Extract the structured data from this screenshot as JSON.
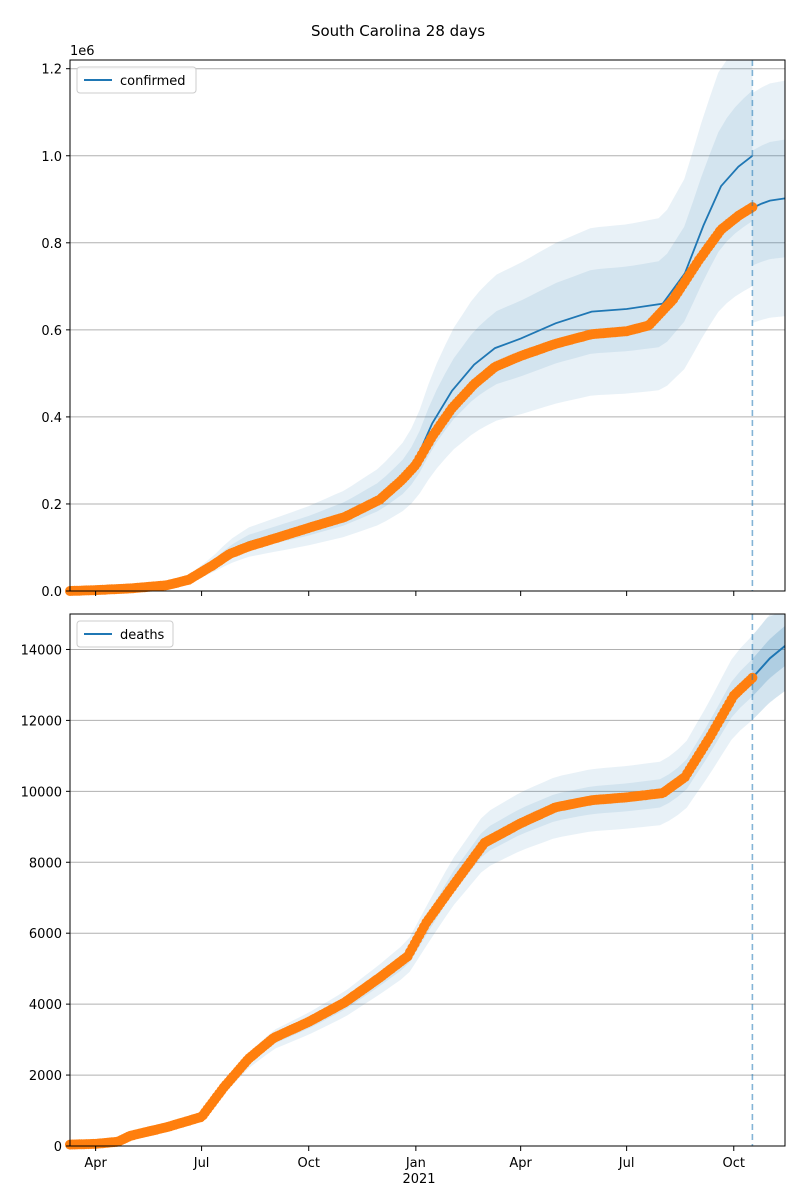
{
  "title": "South Carolina 28 days",
  "colors": {
    "model": "#1f77b4",
    "observed": "#ff7f0e",
    "grid": "#b0b0b0"
  },
  "chart_data": [
    {
      "type": "line",
      "legend": "confirmed",
      "legend_loc": "upper left",
      "grid": "horizontal",
      "offset_label": "1e6",
      "ylim": [
        0,
        1.22
      ],
      "yticks": [
        0,
        0.2,
        0.4,
        0.6,
        0.8,
        1.0,
        1.2
      ],
      "ytick_labels": [
        "0.0",
        "0.2",
        "0.4",
        "0.6",
        "0.8",
        "1.0",
        "1.2"
      ],
      "xlim": [
        "2020-03-10",
        "2021-11-14"
      ],
      "forecast_start": "2021-10-17",
      "model_line": [
        [
          "2020-03-10",
          0
        ],
        [
          "2020-04-01",
          0.003
        ],
        [
          "2020-05-01",
          0.007
        ],
        [
          "2020-06-01",
          0.014
        ],
        [
          "2020-06-20",
          0.028
        ],
        [
          "2020-07-10",
          0.06
        ],
        [
          "2020-07-25",
          0.09
        ],
        [
          "2020-08-10",
          0.112
        ],
        [
          "2020-09-01",
          0.128
        ],
        [
          "2020-10-01",
          0.15
        ],
        [
          "2020-11-01",
          0.178
        ],
        [
          "2020-12-01",
          0.218
        ],
        [
          "2020-12-20",
          0.26
        ],
        [
          "2021-01-01",
          0.3
        ],
        [
          "2021-01-15",
          0.385
        ],
        [
          "2021-02-01",
          0.46
        ],
        [
          "2021-02-20",
          0.52
        ],
        [
          "2021-03-10",
          0.558
        ],
        [
          "2021-04-01",
          0.58
        ],
        [
          "2021-05-01",
          0.615
        ],
        [
          "2021-06-01",
          0.642
        ],
        [
          "2021-07-01",
          0.648
        ],
        [
          "2021-08-01",
          0.66
        ],
        [
          "2021-08-20",
          0.73
        ],
        [
          "2021-09-05",
          0.84
        ],
        [
          "2021-09-20",
          0.93
        ],
        [
          "2021-10-05",
          0.975
        ],
        [
          "2021-10-17",
          1.0
        ]
      ],
      "forecast_line": [
        [
          "2021-10-17",
          0.88
        ],
        [
          "2021-10-25",
          0.89
        ],
        [
          "2021-11-01",
          0.897
        ],
        [
          "2021-11-14",
          0.902
        ]
      ],
      "band_relative_width": [
        0.15,
        0.3
      ],
      "observed": [
        [
          "2020-03-10",
          0
        ],
        [
          "2020-04-01",
          0.002
        ],
        [
          "2020-05-01",
          0.006
        ],
        [
          "2020-06-01",
          0.013
        ],
        [
          "2020-06-20",
          0.026
        ],
        [
          "2020-07-10",
          0.058
        ],
        [
          "2020-07-25",
          0.085
        ],
        [
          "2020-08-10",
          0.102
        ],
        [
          "2020-09-01",
          0.12
        ],
        [
          "2020-10-01",
          0.145
        ],
        [
          "2020-11-01",
          0.17
        ],
        [
          "2020-12-01",
          0.21
        ],
        [
          "2020-12-20",
          0.255
        ],
        [
          "2021-01-01",
          0.29
        ],
        [
          "2021-01-15",
          0.355
        ],
        [
          "2021-02-01",
          0.42
        ],
        [
          "2021-02-20",
          0.475
        ],
        [
          "2021-03-10",
          0.515
        ],
        [
          "2021-04-01",
          0.54
        ],
        [
          "2021-05-01",
          0.568
        ],
        [
          "2021-06-01",
          0.59
        ],
        [
          "2021-07-01",
          0.597
        ],
        [
          "2021-07-20",
          0.61
        ],
        [
          "2021-08-10",
          0.67
        ],
        [
          "2021-09-01",
          0.76
        ],
        [
          "2021-09-20",
          0.83
        ],
        [
          "2021-10-05",
          0.862
        ],
        [
          "2021-10-17",
          0.882
        ]
      ]
    },
    {
      "type": "line",
      "legend": "deaths",
      "legend_loc": "upper left",
      "grid": "horizontal",
      "ylim": [
        0,
        15000
      ],
      "yticks": [
        0,
        2000,
        4000,
        6000,
        8000,
        10000,
        12000,
        14000
      ],
      "ytick_labels": [
        "0",
        "2000",
        "4000",
        "6000",
        "8000",
        "10000",
        "12000",
        "14000"
      ],
      "xlim": [
        "2020-03-10",
        "2021-11-14"
      ],
      "xticks": [
        "2020-04-01",
        "2020-07-01",
        "2020-10-01",
        "2021-01-01",
        "2021-04-01",
        "2021-07-01",
        "2021-10-01"
      ],
      "xtick_labels": [
        "Apr",
        "Jul",
        "Oct",
        "Jan",
        "Apr",
        "Jul",
        "Oct"
      ],
      "year_label": "2021",
      "forecast_start": "2021-10-17",
      "model_line": [
        [
          "2020-03-10",
          40
        ],
        [
          "2020-04-01",
          60
        ],
        [
          "2020-05-01",
          300
        ],
        [
          "2020-06-01",
          550
        ],
        [
          "2020-07-01",
          850
        ],
        [
          "2020-07-20",
          1600
        ],
        [
          "2020-08-10",
          2400
        ],
        [
          "2020-09-01",
          3000
        ],
        [
          "2020-10-01",
          3450
        ],
        [
          "2020-11-01",
          4000
        ],
        [
          "2020-12-01",
          4700
        ],
        [
          "2020-12-25",
          5300
        ],
        [
          "2021-01-10",
          6200
        ],
        [
          "2021-02-01",
          7400
        ],
        [
          "2021-03-01",
          8600
        ],
        [
          "2021-04-01",
          9150
        ],
        [
          "2021-05-01",
          9550
        ],
        [
          "2021-06-01",
          9750
        ],
        [
          "2021-07-01",
          9830
        ],
        [
          "2021-08-01",
          9950
        ],
        [
          "2021-08-20",
          10400
        ],
        [
          "2021-09-10",
          11500
        ],
        [
          "2021-10-01",
          12700
        ],
        [
          "2021-10-17",
          13200
        ],
        [
          "2021-11-01",
          13750
        ],
        [
          "2021-11-14",
          14100
        ]
      ],
      "forecast_line": [
        [
          "2021-10-17",
          13200
        ],
        [
          "2021-11-01",
          13750
        ],
        [
          "2021-11-14",
          14100
        ]
      ],
      "band_relative_width": [
        0.04,
        0.09
      ],
      "observed": [
        [
          "2020-03-10",
          40
        ],
        [
          "2020-04-01",
          60
        ],
        [
          "2020-04-20",
          120
        ],
        [
          "2020-05-01",
          290
        ],
        [
          "2020-06-01",
          530
        ],
        [
          "2020-07-01",
          820
        ],
        [
          "2020-07-20",
          1650
        ],
        [
          "2020-08-10",
          2450
        ],
        [
          "2020-09-01",
          3050
        ],
        [
          "2020-10-01",
          3500
        ],
        [
          "2020-11-01",
          4050
        ],
        [
          "2020-12-01",
          4750
        ],
        [
          "2020-12-25",
          5350
        ],
        [
          "2021-01-10",
          6300
        ],
        [
          "2021-02-01",
          7300
        ],
        [
          "2021-03-01",
          8550
        ],
        [
          "2021-04-01",
          9100
        ],
        [
          "2021-05-01",
          9550
        ],
        [
          "2021-06-01",
          9750
        ],
        [
          "2021-07-01",
          9830
        ],
        [
          "2021-08-01",
          9950
        ],
        [
          "2021-08-20",
          10400
        ],
        [
          "2021-09-10",
          11500
        ],
        [
          "2021-10-01",
          12700
        ],
        [
          "2021-10-17",
          13200
        ]
      ]
    }
  ]
}
